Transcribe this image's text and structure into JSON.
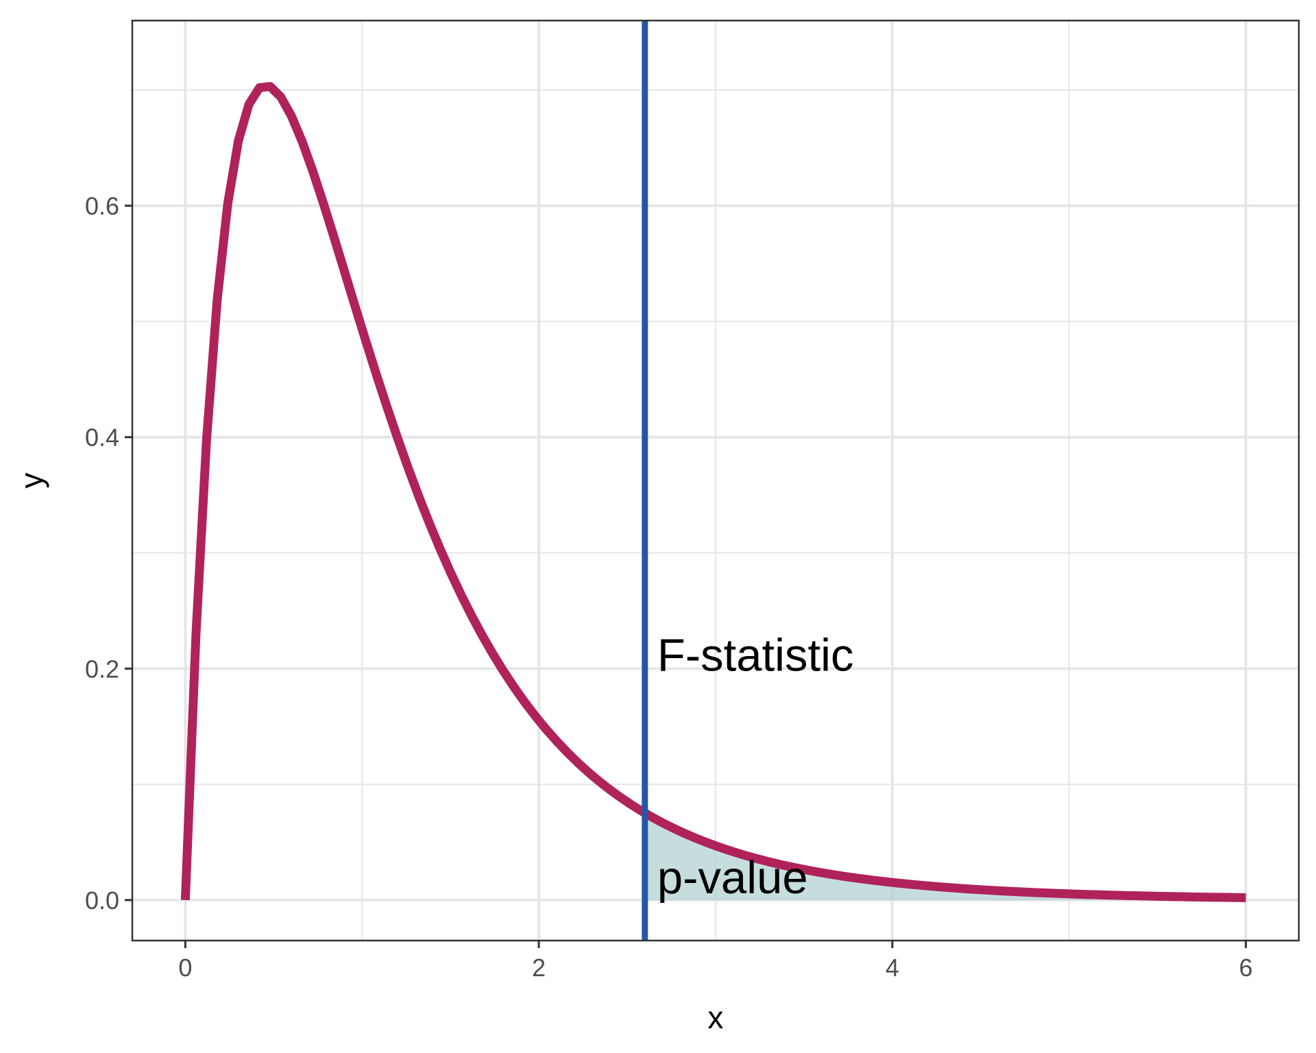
{
  "chart_data": {
    "type": "line",
    "xlabel": "x",
    "ylabel": "y",
    "xlim": [
      -0.3,
      6.3
    ],
    "ylim": [
      -0.035,
      0.76
    ],
    "x_ticks": [
      0,
      2,
      4,
      6
    ],
    "x_tick_labels": [
      "0",
      "2",
      "4",
      "6"
    ],
    "x_minor_ticks": [
      1,
      3,
      5
    ],
    "y_ticks": [
      0.0,
      0.2,
      0.4,
      0.6
    ],
    "y_tick_labels": [
      "0.0",
      "0.2",
      "0.4",
      "0.6"
    ],
    "y_minor_ticks": [
      0.1,
      0.3,
      0.5,
      0.7
    ],
    "grid": true,
    "distribution": {
      "family": "F",
      "df1": 4,
      "df2": 20
    },
    "curve_domain": [
      0,
      6
    ],
    "series": [
      {
        "x": [
          0,
          0.1,
          0.2,
          0.3,
          0.4,
          0.5,
          0.6,
          0.8,
          1.0,
          1.2,
          1.5,
          2.0,
          2.5,
          3.0,
          3.5,
          4.0,
          5.0,
          6.0
        ],
        "y": [
          0.0,
          0.37,
          0.59,
          0.69,
          0.72,
          0.72,
          0.7,
          0.63,
          0.54,
          0.45,
          0.33,
          0.18,
          0.09,
          0.045,
          0.023,
          0.012,
          0.004,
          0.001
        ]
      }
    ],
    "reference_line": {
      "x": 2.6
    },
    "shaded_region": {
      "from": 2.6,
      "to": 6
    },
    "annotations": [
      {
        "text": "F-statistic",
        "x": 2.67,
        "y": 0.198
      },
      {
        "text": "p-value",
        "x": 2.67,
        "y": 0.006
      }
    ],
    "colors": {
      "curve": "#b0225a",
      "reference_line": "#2457a8",
      "shade": "#a8cbcd",
      "grid": "#e6e6e6",
      "panel_border": "#333333",
      "axis_ticks": "#333333"
    }
  }
}
